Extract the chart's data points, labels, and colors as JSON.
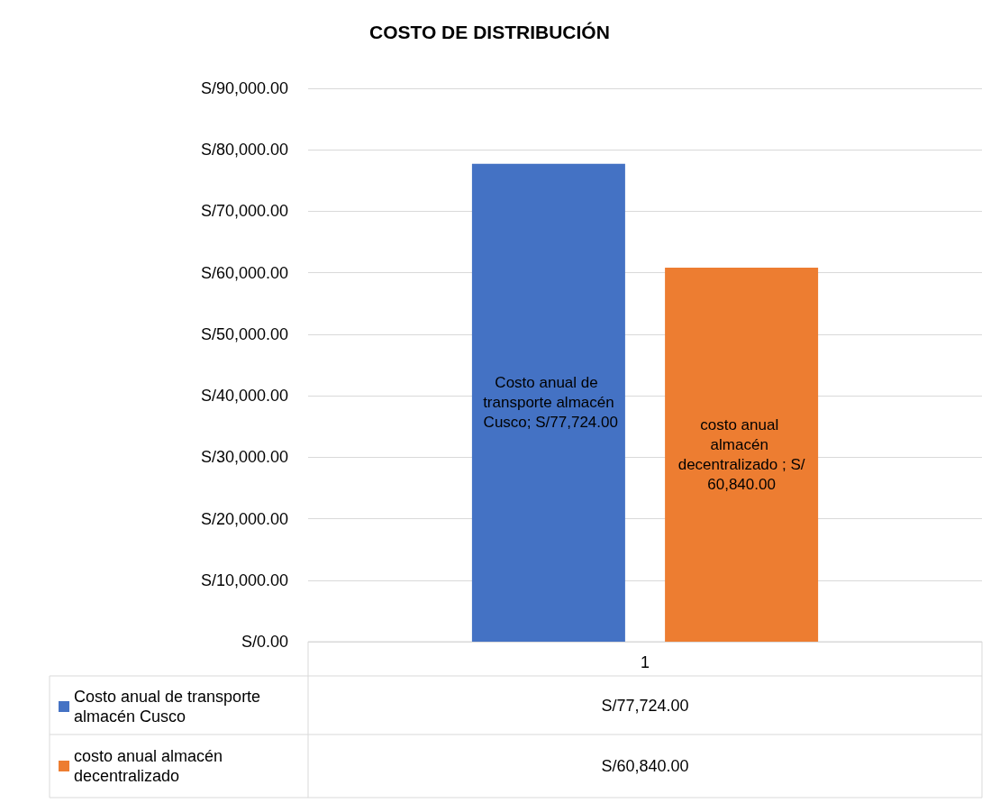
{
  "chart_data": {
    "type": "bar",
    "title": "COSTO DE DISTRIBUCIÓN",
    "categories": [
      "1"
    ],
    "series": [
      {
        "name": "Costo anual de transporte almacén Cusco",
        "color": "#4472c4",
        "values": [
          77724
        ],
        "value_labels": [
          "Costo anual de transporte almacén Cusco; S/77,724.00"
        ]
      },
      {
        "name": "costo anual almacén decentralizado",
        "color": "#ed7d31",
        "values": [
          60840
        ],
        "value_labels": [
          "costo anual almacén decentralizado ; S/60,840.00"
        ]
      }
    ],
    "ylim": [
      0,
      90000
    ],
    "yticks": [
      {
        "value": 0,
        "label": "S/0.00"
      },
      {
        "value": 10000,
        "label": "S/10,000.00"
      },
      {
        "value": 20000,
        "label": "S/20,000.00"
      },
      {
        "value": 30000,
        "label": "S/30,000.00"
      },
      {
        "value": 40000,
        "label": "S/40,000.00"
      },
      {
        "value": 50000,
        "label": "S/50,000.00"
      },
      {
        "value": 60000,
        "label": "S/60,000.00"
      },
      {
        "value": 70000,
        "label": "S/70,000.00"
      },
      {
        "value": 80000,
        "label": "S/80,000.00"
      },
      {
        "value": 90000,
        "label": "S/90,000.00"
      }
    ],
    "grid": "y",
    "legend": "bottom",
    "annotations": [
      "S/77,724.00",
      "S/60,840.00"
    ]
  }
}
